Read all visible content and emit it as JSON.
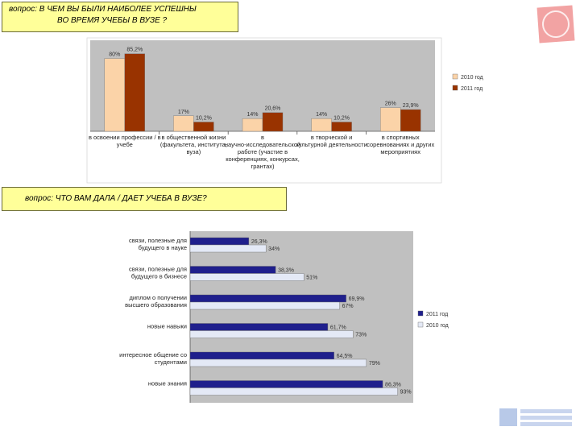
{
  "questions": {
    "q1_line1": "вопрос: В ЧЕМ ВЫ БЫЛИ НАИБОЛЕЕ УСПЕШНЫ",
    "q1_line2": "ВО ВРЕМЯ УЧЕБЫ В ВУЗЕ ?",
    "q2": "вопрос: ЧТО ВАМ ДАЛА / ДАЕТ УЧЕБА В ВУЗЕ?"
  },
  "chart_data": [
    {
      "type": "bar",
      "orientation": "vertical",
      "categories": [
        "в освоении профессии / в учебе",
        "в общественной жизни (факультета, института, вуза)",
        "в научно-исследовательской работе (участие в конференциях, конкурсах, грантах)",
        "в творческой и культурной деятельности",
        "в спортивных соревнованиях и других мероприятиях"
      ],
      "series": [
        {
          "name": "2010 год",
          "color": "#fbd3a8",
          "values": [
            80,
            17,
            14,
            14,
            26
          ],
          "labels": [
            "80%",
            "17%",
            "14%",
            "14%",
            "26%"
          ]
        },
        {
          "name": "2011 год",
          "color": "#993300",
          "values": [
            85.2,
            10.2,
            20.6,
            10.2,
            23.9
          ],
          "labels": [
            "85,2%",
            "10,2%",
            "20,6%",
            "10,2%",
            "23,9%"
          ]
        }
      ],
      "ylim": [
        0,
        100
      ],
      "legend": "right"
    },
    {
      "type": "bar",
      "orientation": "horizontal",
      "categories": [
        "связи, полезные для будущего в науке",
        "связи, полезные для будущего в бизнесе",
        "диплом о получении высшего образования",
        "новые навыки",
        "интересное общение со студентами",
        "новые знания"
      ],
      "series": [
        {
          "name": "2011 год",
          "color": "#1f1f8c",
          "values": [
            26.3,
            38.3,
            69.9,
            61.7,
            64.5,
            86.3
          ],
          "labels": [
            "26,3%",
            "38,3%",
            "69,9%",
            "61,7%",
            "64,5%",
            "86,3%"
          ]
        },
        {
          "name": "2010 год",
          "color": "#e4e9f6",
          "values": [
            34,
            51,
            67,
            73,
            79,
            93
          ],
          "labels": [
            "34%",
            "51%",
            "67%",
            "73%",
            "79%",
            "93%"
          ]
        }
      ],
      "xlim": [
        0,
        100
      ],
      "legend": "right"
    }
  ]
}
